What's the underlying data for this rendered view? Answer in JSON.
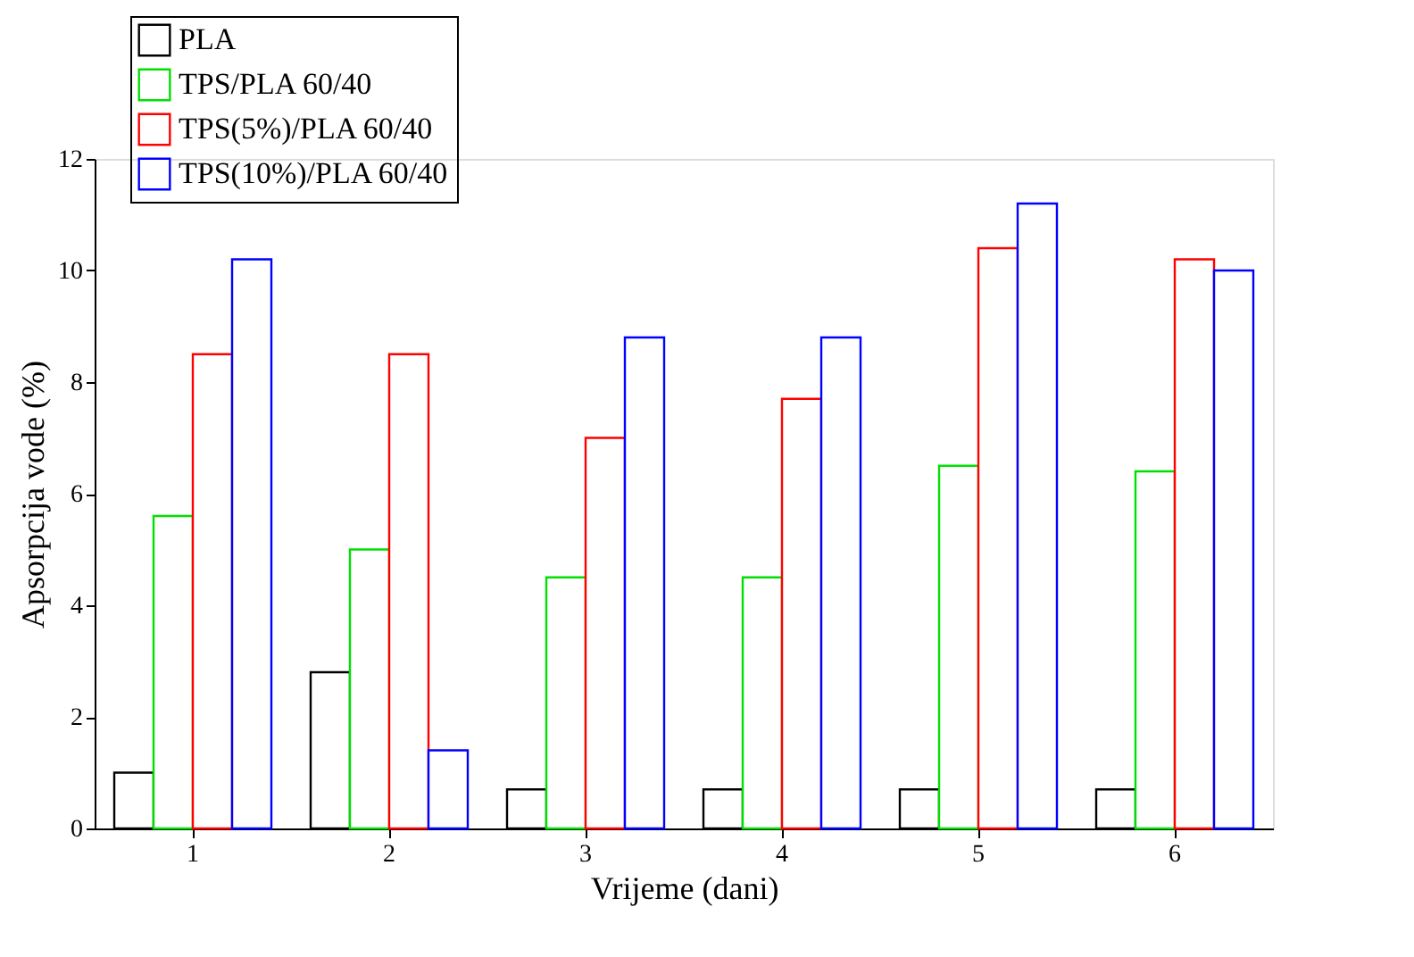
{
  "chart_data": {
    "type": "bar",
    "xlabel": "Vrijeme (dani)",
    "ylabel": "Apsorpcija vode (%)",
    "categories": [
      "1",
      "2",
      "3",
      "4",
      "5",
      "6"
    ],
    "series": [
      {
        "name": "PLA",
        "color": "#000000",
        "values": [
          1.0,
          2.8,
          0.7,
          0.7,
          0.7,
          0.7
        ]
      },
      {
        "name": "TPS/PLA 60/40",
        "color": "#00e000",
        "values": [
          5.6,
          5.0,
          4.5,
          4.5,
          6.5,
          6.4
        ]
      },
      {
        "name": "TPS(5%)/PLA 60/40",
        "color": "#ff0000",
        "values": [
          8.5,
          8.5,
          7.0,
          7.7,
          10.4,
          10.2
        ]
      },
      {
        "name": "TPS(10%)/PLA 60/40",
        "color": "#0000ff",
        "values": [
          10.2,
          1.4,
          8.8,
          8.8,
          11.2,
          10.0
        ]
      }
    ],
    "ylim": [
      0,
      12
    ],
    "yticks": [
      0,
      2,
      4,
      6,
      8,
      10,
      12
    ],
    "grid": false,
    "legend": "top left"
  }
}
